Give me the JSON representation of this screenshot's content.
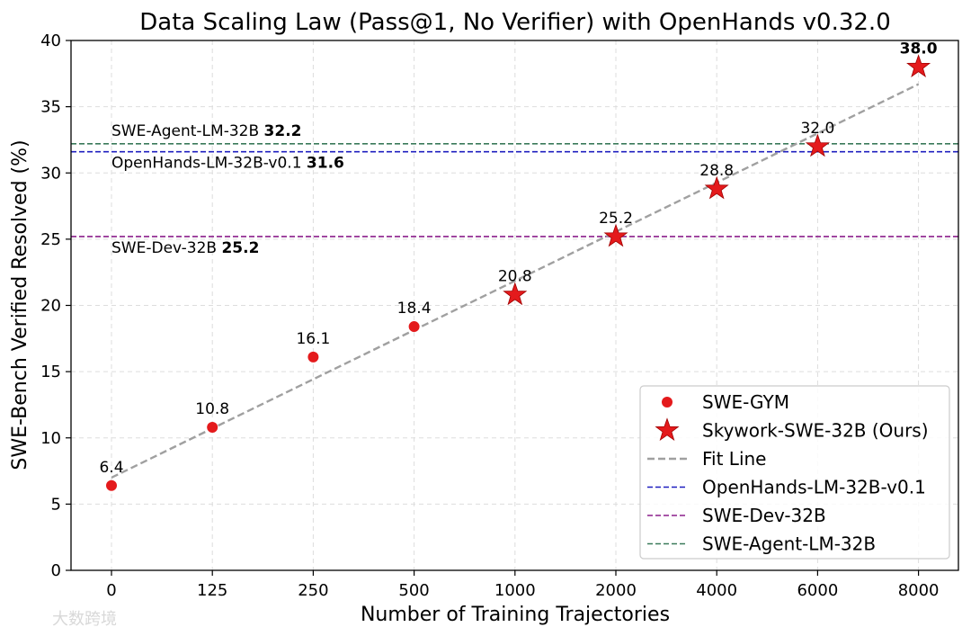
{
  "watermark": "大数跨境",
  "chart_data": {
    "type": "scatter",
    "title": "Data Scaling Law (Pass@1, No Verifier) with OpenHands v0.32.0",
    "xlabel": "Number of Training Trajectories",
    "ylabel": "SWE-Bench Verified Resolved (%)",
    "x_ticks": [
      "0",
      "125",
      "250",
      "500",
      "1000",
      "2000",
      "4000",
      "6000",
      "8000"
    ],
    "y_ticks": [
      "0",
      "5",
      "10",
      "15",
      "20",
      "25",
      "30",
      "35",
      "40"
    ],
    "ylim": [
      0,
      40
    ],
    "grid": true,
    "legend_position": "lower-right",
    "series": [
      {
        "name": "SWE-GYM",
        "marker": "circle",
        "color": "#e41a1c",
        "points": [
          {
            "x": "0",
            "y": 6.4,
            "label": "6.4"
          },
          {
            "x": "125",
            "y": 10.8,
            "label": "10.8"
          },
          {
            "x": "250",
            "y": 16.1,
            "label": "16.1"
          },
          {
            "x": "500",
            "y": 18.4,
            "label": "18.4"
          }
        ]
      },
      {
        "name": "Skywork-SWE-32B (Ours)",
        "marker": "star",
        "color": "#e41a1c",
        "points": [
          {
            "x": "1000",
            "y": 20.8,
            "label": "20.8"
          },
          {
            "x": "2000",
            "y": 25.2,
            "label": "25.2"
          },
          {
            "x": "4000",
            "y": 28.8,
            "label": "28.8"
          },
          {
            "x": "6000",
            "y": 32.0,
            "label": "32.0"
          },
          {
            "x": "8000",
            "y": 38.0,
            "label": "38.0"
          }
        ]
      }
    ],
    "fit_line": {
      "name": "Fit Line",
      "color": "#a0a0a0",
      "start": {
        "x": "0",
        "y": 7.0
      },
      "end": {
        "x": "8000",
        "y": 36.7
      }
    },
    "reference_lines": [
      {
        "name": "OpenHands-LM-32B-v0.1",
        "value": 31.6,
        "value_label": "31.6",
        "color": "#1f1fbf"
      },
      {
        "name": "SWE-Dev-32B",
        "value": 25.2,
        "value_label": "25.2",
        "color": "#8b1f8b"
      },
      {
        "name": "SWE-Agent-LM-32B",
        "value": 32.2,
        "value_label": "32.2",
        "color": "#3a7a5a"
      }
    ]
  }
}
